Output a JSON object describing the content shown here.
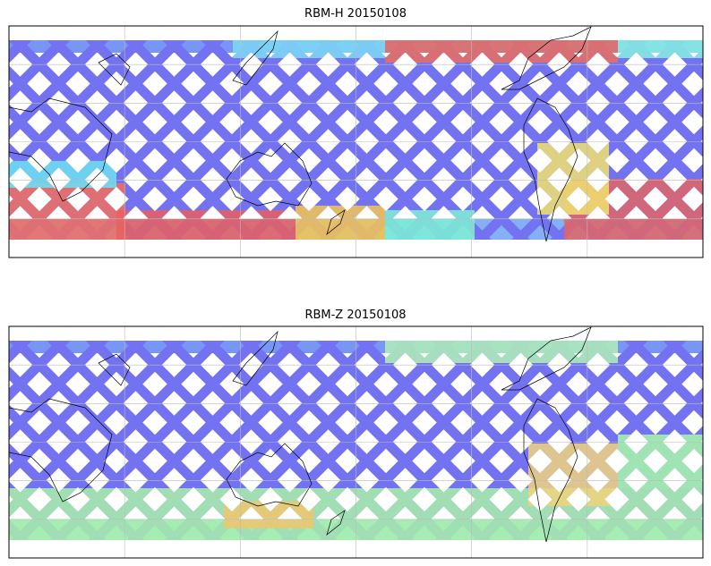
{
  "panels": [
    {
      "title": "RBM-H 20150108"
    },
    {
      "title": "RBM-Z 20150108"
    }
  ]
}
